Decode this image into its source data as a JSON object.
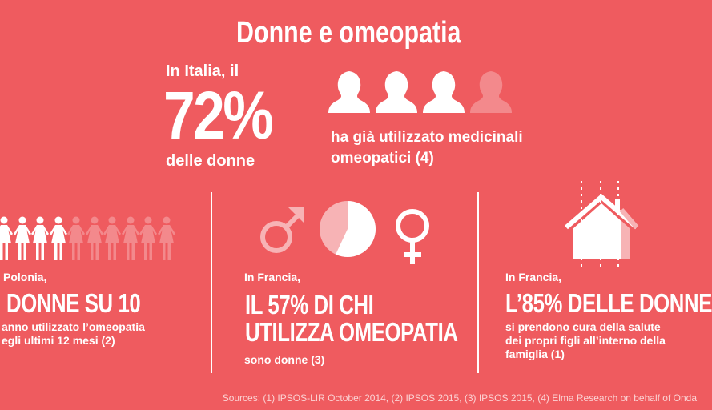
{
  "title": "Donne e omeopatia",
  "italy": {
    "intro": "In Italia, il",
    "percent": "72%",
    "subject": "delle donne",
    "desc_line1": "ha già utilizzato medicinali",
    "desc_line2": "omeopatici (4)",
    "heads_highlighted": 3,
    "heads_total": 4
  },
  "poland": {
    "intro": "Polonia,",
    "headline": "DONNE SU 10",
    "desc_line1": "anno utilizzato l’omeopatia",
    "desc_line2": "egli ultimi 12 mesi (2)",
    "figures_highlighted": 4,
    "figures_faded": 6
  },
  "france_users": {
    "intro": "In Francia,",
    "headline_line1": "IL 57% DI CHI",
    "headline_line2": "UTILIZZA OMEOPATIA",
    "desc": "sono donne (3)",
    "pie_women_percent": 57
  },
  "france_care": {
    "intro": "In Francia,",
    "headline": "L’85% DELLE DONNE",
    "desc_line1": "si prendono cura della salute",
    "desc_line2": "dei propri figli all’interno della",
    "desc_line3": "famiglia (1)",
    "house_fill_percent": 85
  },
  "sources": "Sources: (1) IPSOS-LIR October 2014, (2) IPSOS 2015, (3) IPSOS 2015, (4) Elma Research on behalf of Onda",
  "colors": {
    "background": "#EF5B5F",
    "faded": "#F7B3B5",
    "white": "#FFFFFF"
  }
}
